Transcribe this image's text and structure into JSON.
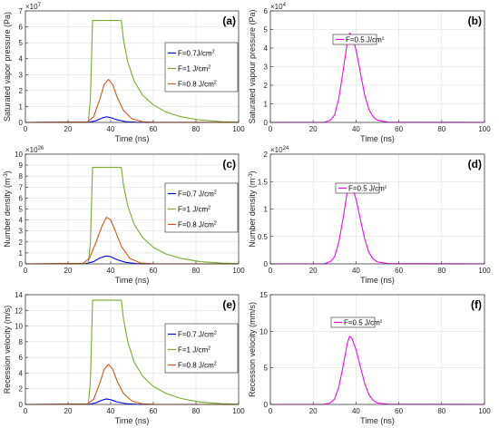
{
  "chart_data": [
    {
      "type": "line",
      "panel_label": "(a)",
      "xlabel": "Time (ns)",
      "ylabel": "Saturated vapor pressure (Pa)",
      "xlim": [
        0,
        100
      ],
      "ylim": [
        0,
        7
      ],
      "xticks": [
        0,
        20,
        40,
        60,
        80,
        100
      ],
      "yticks": [
        0,
        1,
        2,
        3,
        4,
        5,
        6,
        7
      ],
      "yexponent": {
        "base": "×10",
        "power": "7"
      },
      "legend": {
        "position": "right-middle",
        "entries": [
          {
            "base": "F=0.7J/cm",
            "sup": "2"
          },
          {
            "base": "F=1 J/cm",
            "sup": "2"
          },
          {
            "base": "F=0.8 J/cm",
            "sup": "2"
          }
        ]
      },
      "grid": true,
      "series": [
        {
          "color": "#0000ff",
          "x": [
            0,
            30,
            33,
            36,
            38,
            40,
            43,
            47,
            52,
            60,
            100
          ],
          "y": [
            0,
            0.02,
            0.1,
            0.28,
            0.35,
            0.3,
            0.16,
            0.05,
            0.01,
            0,
            0
          ]
        },
        {
          "color": "#77ac30",
          "x": [
            0,
            29.5,
            30.5,
            31.5,
            45,
            46,
            48,
            51,
            55,
            60,
            66,
            73,
            82,
            92,
            100
          ],
          "y": [
            0,
            0,
            1.5,
            6.4,
            6.4,
            5.2,
            3.8,
            2.6,
            1.7,
            1.1,
            0.65,
            0.35,
            0.15,
            0.05,
            0.02
          ]
        },
        {
          "color": "#d95319",
          "x": [
            0,
            29,
            32,
            35,
            37,
            39,
            41,
            43,
            46,
            50,
            55,
            60,
            100
          ],
          "y": [
            0,
            0.03,
            0.35,
            1.5,
            2.4,
            2.7,
            2.35,
            1.6,
            0.75,
            0.22,
            0.04,
            0.01,
            0
          ]
        }
      ]
    },
    {
      "type": "line",
      "panel_label": "(b)",
      "xlabel": "Time (ns)",
      "ylabel": "Saturated vapour pressure (Pa)",
      "xlim": [
        0,
        100
      ],
      "ylim": [
        0,
        6
      ],
      "xticks": [
        0,
        20,
        40,
        60,
        80,
        100
      ],
      "yticks": [
        0,
        1,
        2,
        3,
        4,
        5,
        6
      ],
      "yexponent": {
        "base": "×10",
        "power": "4"
      },
      "legend": {
        "position": "top-left",
        "entries": [
          {
            "base": "F=0.5 J/cm",
            "sup": "2"
          }
        ]
      },
      "grid": true,
      "series": [
        {
          "color": "#ff00ff",
          "x": [
            0,
            25,
            28,
            30,
            32,
            34,
            36,
            37,
            38,
            40,
            42,
            44,
            46,
            48,
            50,
            55,
            100
          ],
          "y": [
            0,
            0,
            0.12,
            0.4,
            1.3,
            2.8,
            4.35,
            4.8,
            4.7,
            3.9,
            2.7,
            1.5,
            0.7,
            0.3,
            0.12,
            0.01,
            0
          ]
        }
      ]
    },
    {
      "type": "line",
      "panel_label": "(c)",
      "xlabel": "Time (ns)",
      "ylabel_base": "Number density (m",
      "ylabel_sup": "-3",
      "ylabel_end": ")",
      "xlim": [
        0,
        100
      ],
      "ylim": [
        0,
        10
      ],
      "xticks": [
        0,
        20,
        40,
        60,
        80,
        100
      ],
      "yticks": [
        0,
        1,
        2,
        3,
        4,
        5,
        6,
        7,
        8,
        9,
        10
      ],
      "yexponent": {
        "base": "×10",
        "power": "26"
      },
      "legend": {
        "position": "right-middle",
        "entries": [
          {
            "base": "F=0.7 J/cm",
            "sup": "2"
          },
          {
            "base": "F=1 J/cm",
            "sup": "2"
          },
          {
            "base": "F=0.8 J/cm",
            "sup": "2"
          }
        ]
      },
      "grid": true,
      "series": [
        {
          "color": "#0000ff",
          "x": [
            0,
            28,
            32,
            35,
            38,
            40,
            43,
            47,
            52,
            58,
            100
          ],
          "y": [
            0,
            0.02,
            0.2,
            0.55,
            0.72,
            0.65,
            0.38,
            0.14,
            0.03,
            0,
            0
          ]
        },
        {
          "color": "#77ac30",
          "x": [
            0,
            29.5,
            30.5,
            31.5,
            45,
            46,
            48,
            51,
            55,
            60,
            66,
            73,
            82,
            92,
            100
          ],
          "y": [
            0,
            0,
            2,
            8.8,
            8.8,
            7.2,
            5.3,
            3.6,
            2.4,
            1.5,
            0.9,
            0.5,
            0.2,
            0.07,
            0.03
          ]
        },
        {
          "color": "#d95319",
          "x": [
            0,
            27,
            30,
            33,
            36,
            38,
            40,
            42,
            45,
            49,
            54,
            60,
            100
          ],
          "y": [
            0,
            0.05,
            0.5,
            1.9,
            3.5,
            4.25,
            4.0,
            3.1,
            1.6,
            0.5,
            0.08,
            0.01,
            0
          ]
        }
      ]
    },
    {
      "type": "line",
      "panel_label": "(d)",
      "xlabel": "Time (ns)",
      "ylabel_base": "Number density (m",
      "ylabel_sup": "-3",
      "ylabel_end": ")",
      "xlim": [
        0,
        100
      ],
      "ylim": [
        0,
        2
      ],
      "xticks": [
        0,
        20,
        40,
        60,
        80,
        100
      ],
      "yticks": [
        0,
        0.5,
        1,
        1.5,
        2
      ],
      "ytick_labels": [
        "0",
        "0.5",
        "1",
        "1.5",
        "2"
      ],
      "yexponent": {
        "base": "×10",
        "power": "24"
      },
      "legend": {
        "position": "top-left",
        "entries": [
          {
            "base": "F=0.5 J/cm",
            "sup": "2"
          }
        ]
      },
      "grid": true,
      "series": [
        {
          "color": "#ff00ff",
          "x": [
            0,
            25,
            28,
            30,
            32,
            34,
            36,
            37,
            38,
            40,
            42,
            44,
            46,
            48,
            50,
            55,
            100
          ],
          "y": [
            0,
            0,
            0.04,
            0.13,
            0.4,
            0.84,
            1.33,
            1.47,
            1.43,
            1.18,
            0.82,
            0.46,
            0.21,
            0.09,
            0.035,
            0.005,
            0
          ]
        }
      ]
    },
    {
      "type": "line",
      "panel_label": "(e)",
      "xlabel": "Time (ns)",
      "ylabel": "Recession velocity (m/s)",
      "xlim": [
        0,
        100
      ],
      "ylim": [
        0,
        14
      ],
      "xticks": [
        0,
        20,
        40,
        60,
        80,
        100
      ],
      "yticks": [
        0,
        2,
        4,
        6,
        8,
        10,
        12,
        14
      ],
      "legend": {
        "position": "right-middle",
        "entries": [
          {
            "base": "F=0.7 J/cm",
            "sup": "2"
          },
          {
            "base": "F=1 J/cm",
            "sup": "2"
          },
          {
            "base": "F=0.8 J/cm",
            "sup": "2"
          }
        ]
      },
      "grid": true,
      "series": [
        {
          "color": "#0000ff",
          "x": [
            0,
            30,
            33,
            36,
            38,
            40,
            43,
            47,
            52,
            60,
            100
          ],
          "y": [
            0,
            0.03,
            0.2,
            0.55,
            0.7,
            0.6,
            0.32,
            0.1,
            0.02,
            0,
            0
          ]
        },
        {
          "color": "#77ac30",
          "x": [
            0,
            29.5,
            30.5,
            31.5,
            45,
            46,
            48,
            51,
            55,
            60,
            66,
            73,
            82,
            92,
            100
          ],
          "y": [
            0,
            0,
            3,
            13.3,
            13.3,
            10.9,
            8,
            5.4,
            3.6,
            2.3,
            1.4,
            0.75,
            0.3,
            0.1,
            0.04
          ]
        },
        {
          "color": "#d95319",
          "x": [
            0,
            29,
            32,
            35,
            37,
            39,
            41,
            43,
            46,
            50,
            55,
            60,
            100
          ],
          "y": [
            0,
            0.05,
            0.65,
            2.8,
            4.5,
            5.1,
            4.45,
            3.0,
            1.4,
            0.42,
            0.07,
            0.01,
            0
          ]
        }
      ]
    },
    {
      "type": "line",
      "panel_label": "(f)",
      "xlabel": "Time (ns)",
      "ylabel": "Recession velocity (mm/s)",
      "xlim": [
        0,
        100
      ],
      "ylim": [
        0,
        15
      ],
      "xticks": [
        0,
        20,
        40,
        60,
        80,
        100
      ],
      "yticks": [
        0,
        5,
        10,
        15
      ],
      "legend": {
        "position": "top-left",
        "entries": [
          {
            "base": "F=0.5 J/cm",
            "sup": "2"
          }
        ]
      },
      "grid": true,
      "series": [
        {
          "color": "#ff00ff",
          "x": [
            0,
            25,
            28,
            30,
            32,
            34,
            36,
            37,
            38,
            40,
            42,
            44,
            46,
            48,
            50,
            55,
            100
          ],
          "y": [
            0,
            0,
            0.22,
            0.75,
            2.4,
            5.3,
            8.4,
            9.3,
            9.1,
            7.5,
            5.2,
            2.9,
            1.35,
            0.55,
            0.2,
            0.03,
            0
          ]
        }
      ]
    }
  ]
}
